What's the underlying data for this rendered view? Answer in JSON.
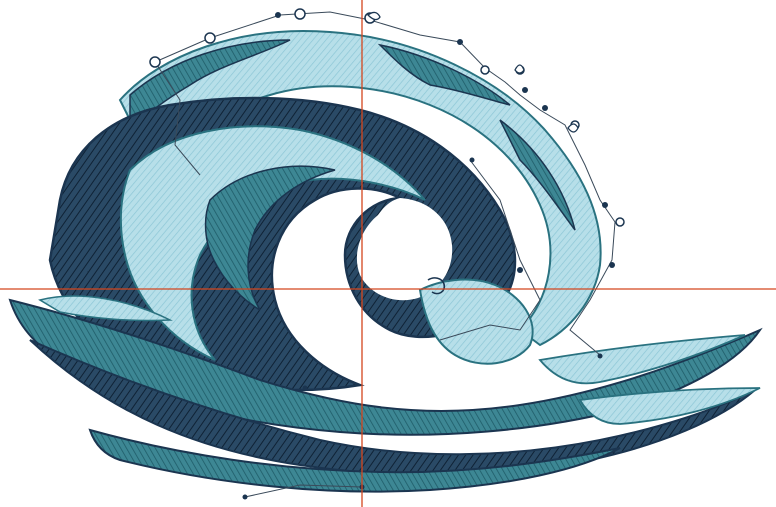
{
  "design": {
    "subject": "wave-embroidery",
    "colors": {
      "navy": "#1b3550",
      "teal": "#2a7280",
      "light": "#a9d6e2",
      "pale": "#cfe9ef",
      "guide": "#d4461e",
      "path": "#3a4a5a"
    }
  },
  "icons": {
    "crosshair": "crosshair-guide-icon",
    "stitch_node": "stitch-node-icon",
    "trim_marker": "trim-marker-icon"
  }
}
